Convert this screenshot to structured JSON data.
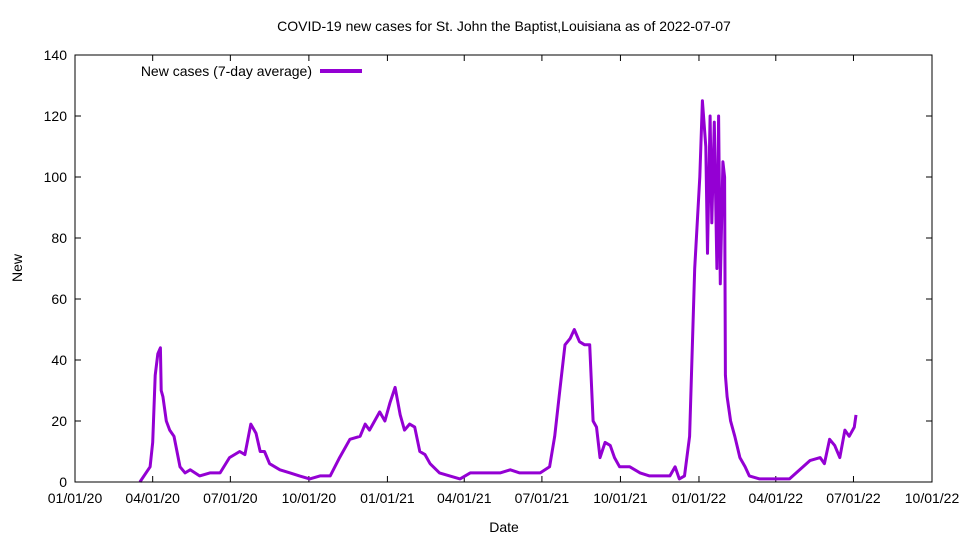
{
  "chart_data": {
    "type": "line",
    "title": "COVID-19 new cases for St. John the Baptist,Louisiana as of 2022-07-07",
    "xlabel": "Date",
    "ylabel": "New",
    "ylim": [
      0,
      140
    ],
    "yticks": [
      0,
      20,
      40,
      60,
      80,
      100,
      120,
      140
    ],
    "xlim_days_since_2020_01_01": [
      0,
      1004
    ],
    "xticks": [
      {
        "label": "01/01/20",
        "day": 0
      },
      {
        "label": "04/01/20",
        "day": 91
      },
      {
        "label": "07/01/20",
        "day": 182
      },
      {
        "label": "10/01/20",
        "day": 274
      },
      {
        "label": "01/01/21",
        "day": 366
      },
      {
        "label": "04/01/21",
        "day": 456
      },
      {
        "label": "07/01/21",
        "day": 547
      },
      {
        "label": "10/01/21",
        "day": 639
      },
      {
        "label": "01/01/22",
        "day": 731
      },
      {
        "label": "04/01/22",
        "day": 821
      },
      {
        "label": "07/01/22",
        "day": 912
      },
      {
        "label": "10/01/22",
        "day": 1004
      }
    ],
    "legend": {
      "label": "New cases (7-day average)",
      "placement": "top-left"
    },
    "series": [
      {
        "name": "New cases (7-day average)",
        "color": "#9400d3",
        "points": [
          [
            76,
            0
          ],
          [
            88,
            5
          ],
          [
            91,
            13
          ],
          [
            94,
            35
          ],
          [
            97,
            42
          ],
          [
            100,
            44
          ],
          [
            101,
            30
          ],
          [
            103,
            28
          ],
          [
            107,
            20
          ],
          [
            111,
            17
          ],
          [
            116,
            15
          ],
          [
            123,
            5
          ],
          [
            129,
            3
          ],
          [
            135,
            4
          ],
          [
            146,
            2
          ],
          [
            158,
            3
          ],
          [
            170,
            3
          ],
          [
            181,
            8
          ],
          [
            193,
            10
          ],
          [
            199,
            9
          ],
          [
            206,
            19
          ],
          [
            212,
            16
          ],
          [
            217,
            10
          ],
          [
            222,
            10
          ],
          [
            228,
            6
          ],
          [
            240,
            4
          ],
          [
            252,
            3
          ],
          [
            263,
            2
          ],
          [
            275,
            1
          ],
          [
            287,
            2
          ],
          [
            299,
            2
          ],
          [
            310,
            8
          ],
          [
            322,
            14
          ],
          [
            334,
            15
          ],
          [
            340,
            19
          ],
          [
            345,
            17
          ],
          [
            357,
            23
          ],
          [
            363,
            20
          ],
          [
            369,
            26
          ],
          [
            375,
            31
          ],
          [
            381,
            22
          ],
          [
            386,
            17
          ],
          [
            392,
            19
          ],
          [
            398,
            18
          ],
          [
            404,
            10
          ],
          [
            410,
            9
          ],
          [
            416,
            6
          ],
          [
            427,
            3
          ],
          [
            439,
            2
          ],
          [
            451,
            1
          ],
          [
            463,
            3
          ],
          [
            474,
            3
          ],
          [
            486,
            3
          ],
          [
            498,
            3
          ],
          [
            510,
            4
          ],
          [
            521,
            3
          ],
          [
            533,
            3
          ],
          [
            545,
            3
          ],
          [
            556,
            5
          ],
          [
            562,
            15
          ],
          [
            568,
            30
          ],
          [
            574,
            45
          ],
          [
            580,
            47
          ],
          [
            585,
            50
          ],
          [
            591,
            46
          ],
          [
            597,
            45
          ],
          [
            603,
            45
          ],
          [
            607,
            20
          ],
          [
            611,
            18
          ],
          [
            615,
            8
          ],
          [
            621,
            13
          ],
          [
            627,
            12
          ],
          [
            632,
            8
          ],
          [
            638,
            5
          ],
          [
            650,
            5
          ],
          [
            662,
            3
          ],
          [
            673,
            2
          ],
          [
            685,
            2
          ],
          [
            697,
            2
          ],
          [
            703,
            5
          ],
          [
            708,
            1
          ],
          [
            714,
            2
          ],
          [
            720,
            15
          ],
          [
            726,
            70
          ],
          [
            732,
            100
          ],
          [
            735,
            125
          ],
          [
            739,
            110
          ],
          [
            741,
            75
          ],
          [
            744,
            120
          ],
          [
            746,
            85
          ],
          [
            749,
            118
          ],
          [
            752,
            70
          ],
          [
            754,
            120
          ],
          [
            756,
            65
          ],
          [
            759,
            105
          ],
          [
            761,
            100
          ],
          [
            762,
            35
          ],
          [
            764,
            28
          ],
          [
            768,
            20
          ],
          [
            773,
            15
          ],
          [
            779,
            8
          ],
          [
            785,
            5
          ],
          [
            790,
            2
          ],
          [
            802,
            1
          ],
          [
            814,
            1
          ],
          [
            826,
            1
          ],
          [
            837,
            1
          ],
          [
            849,
            4
          ],
          [
            861,
            7
          ],
          [
            873,
            8
          ],
          [
            878,
            6
          ],
          [
            884,
            14
          ],
          [
            890,
            12
          ],
          [
            896,
            8
          ],
          [
            902,
            17
          ],
          [
            907,
            15
          ],
          [
            913,
            18
          ],
          [
            915,
            22
          ]
        ]
      }
    ]
  }
}
